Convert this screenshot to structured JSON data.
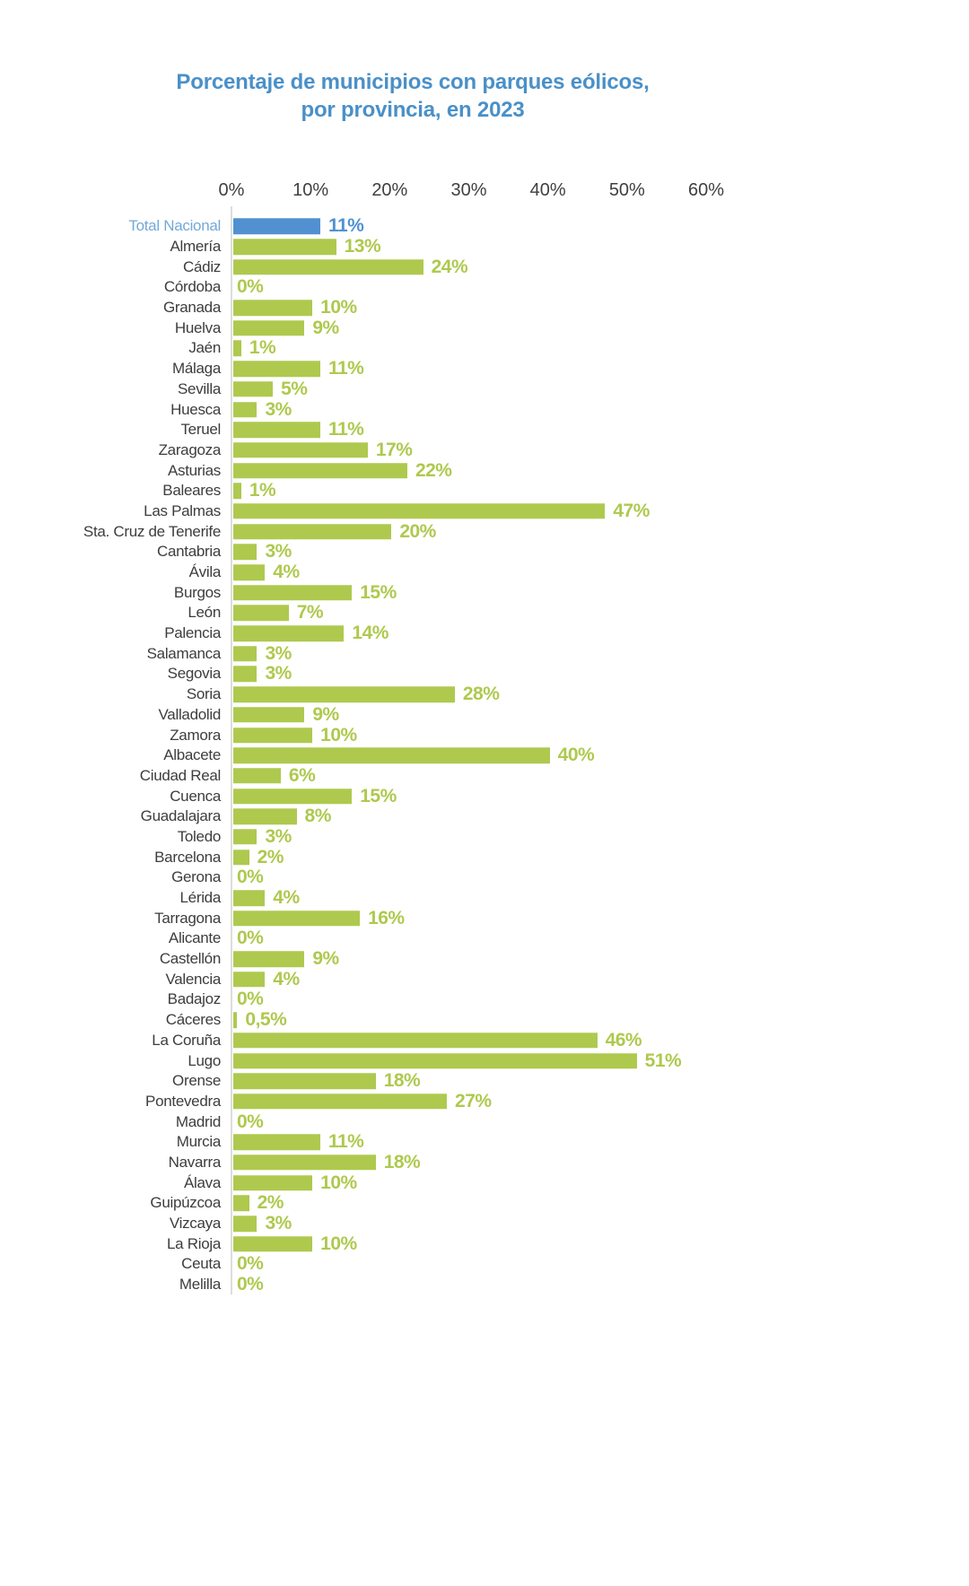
{
  "title": {
    "line1": "Porcentaje de municipios con parques eólicos,",
    "line2": "por provincia, en 2023"
  },
  "colors": {
    "bar_green": "#aec94e",
    "bar_blue": "#5191d1",
    "title_blue": "#4a90c8",
    "category_label_gray": "#3d3d3d",
    "highlight_label_blue": "#72a9d8",
    "axis_line_gray": "#dcdcdc",
    "tick_gray": "#3f3f3f"
  },
  "chart_data": {
    "type": "bar",
    "orientation": "horizontal",
    "title": "Porcentaje de municipios con parques eólicos, por provincia, en 2023",
    "xlabel": "",
    "ylabel": "",
    "unit": "%",
    "xlim": [
      0,
      60
    ],
    "x_ticks": [
      0,
      10,
      20,
      30,
      40,
      50,
      60
    ],
    "x_tick_labels": [
      "0%",
      "10%",
      "20%",
      "30%",
      "40%",
      "50%",
      "60%"
    ],
    "grid": false,
    "legend": false,
    "value_labels_shown": true,
    "highlighted_row": "Total Nacional",
    "rows": [
      {
        "label": "Total Nacional",
        "value": 11,
        "display": "11%",
        "highlight": true
      },
      {
        "label": "Almería",
        "value": 13,
        "display": "13%"
      },
      {
        "label": "Cádiz",
        "value": 24,
        "display": "24%"
      },
      {
        "label": "Córdoba",
        "value": 0,
        "display": "0%"
      },
      {
        "label": "Granada",
        "value": 10,
        "display": "10%"
      },
      {
        "label": "Huelva",
        "value": 9,
        "display": "9%"
      },
      {
        "label": "Jaén",
        "value": 1,
        "display": "1%"
      },
      {
        "label": "Málaga",
        "value": 11,
        "display": "11%"
      },
      {
        "label": "Sevilla",
        "value": 5,
        "display": "5%"
      },
      {
        "label": "Huesca",
        "value": 3,
        "display": "3%"
      },
      {
        "label": "Teruel",
        "value": 11,
        "display": "11%"
      },
      {
        "label": "Zaragoza",
        "value": 17,
        "display": "17%"
      },
      {
        "label": "Asturias",
        "value": 22,
        "display": "22%"
      },
      {
        "label": "Baleares",
        "value": 1,
        "display": "1%"
      },
      {
        "label": "Las Palmas",
        "value": 47,
        "display": "47%"
      },
      {
        "label": "Sta. Cruz de Tenerife",
        "value": 20,
        "display": "20%"
      },
      {
        "label": "Cantabria",
        "value": 3,
        "display": "3%"
      },
      {
        "label": "Ávila",
        "value": 4,
        "display": "4%"
      },
      {
        "label": "Burgos",
        "value": 15,
        "display": "15%"
      },
      {
        "label": "León",
        "value": 7,
        "display": "7%"
      },
      {
        "label": "Palencia",
        "value": 14,
        "display": "14%"
      },
      {
        "label": "Salamanca",
        "value": 3,
        "display": "3%"
      },
      {
        "label": "Segovia",
        "value": 3,
        "display": "3%"
      },
      {
        "label": "Soria",
        "value": 28,
        "display": "28%"
      },
      {
        "label": "Valladolid",
        "value": 9,
        "display": "9%"
      },
      {
        "label": "Zamora",
        "value": 10,
        "display": "10%"
      },
      {
        "label": "Albacete",
        "value": 40,
        "display": "40%"
      },
      {
        "label": "Ciudad Real",
        "value": 6,
        "display": "6%"
      },
      {
        "label": "Cuenca",
        "value": 15,
        "display": "15%"
      },
      {
        "label": "Guadalajara",
        "value": 8,
        "display": "8%"
      },
      {
        "label": "Toledo",
        "value": 3,
        "display": "3%"
      },
      {
        "label": "Barcelona",
        "value": 2,
        "display": "2%"
      },
      {
        "label": "Gerona",
        "value": 0,
        "display": "0%"
      },
      {
        "label": "Lérida",
        "value": 4,
        "display": "4%"
      },
      {
        "label": "Tarragona",
        "value": 16,
        "display": "16%"
      },
      {
        "label": "Alicante",
        "value": 0,
        "display": "0%"
      },
      {
        "label": "Castellón",
        "value": 9,
        "display": "9%"
      },
      {
        "label": "Valencia",
        "value": 4,
        "display": "4%"
      },
      {
        "label": "Badajoz",
        "value": 0,
        "display": "0%"
      },
      {
        "label": "Cáceres",
        "value": 0.5,
        "display": "0,5%"
      },
      {
        "label": "La Coruña",
        "value": 46,
        "display": "46%"
      },
      {
        "label": "Lugo",
        "value": 51,
        "display": "51%"
      },
      {
        "label": "Orense",
        "value": 18,
        "display": "18%"
      },
      {
        "label": "Pontevedra",
        "value": 27,
        "display": "27%"
      },
      {
        "label": "Madrid",
        "value": 0,
        "display": "0%"
      },
      {
        "label": "Murcia",
        "value": 11,
        "display": "11%"
      },
      {
        "label": "Navarra",
        "value": 18,
        "display": "18%"
      },
      {
        "label": "Álava",
        "value": 10,
        "display": "10%"
      },
      {
        "label": "Guipúzcoa",
        "value": 2,
        "display": "2%"
      },
      {
        "label": "Vizcaya",
        "value": 3,
        "display": "3%"
      },
      {
        "label": "La Rioja",
        "value": 10,
        "display": "10%"
      },
      {
        "label": "Ceuta",
        "value": 0,
        "display": "0%"
      },
      {
        "label": "Melilla",
        "value": 0,
        "display": "0%"
      }
    ]
  }
}
